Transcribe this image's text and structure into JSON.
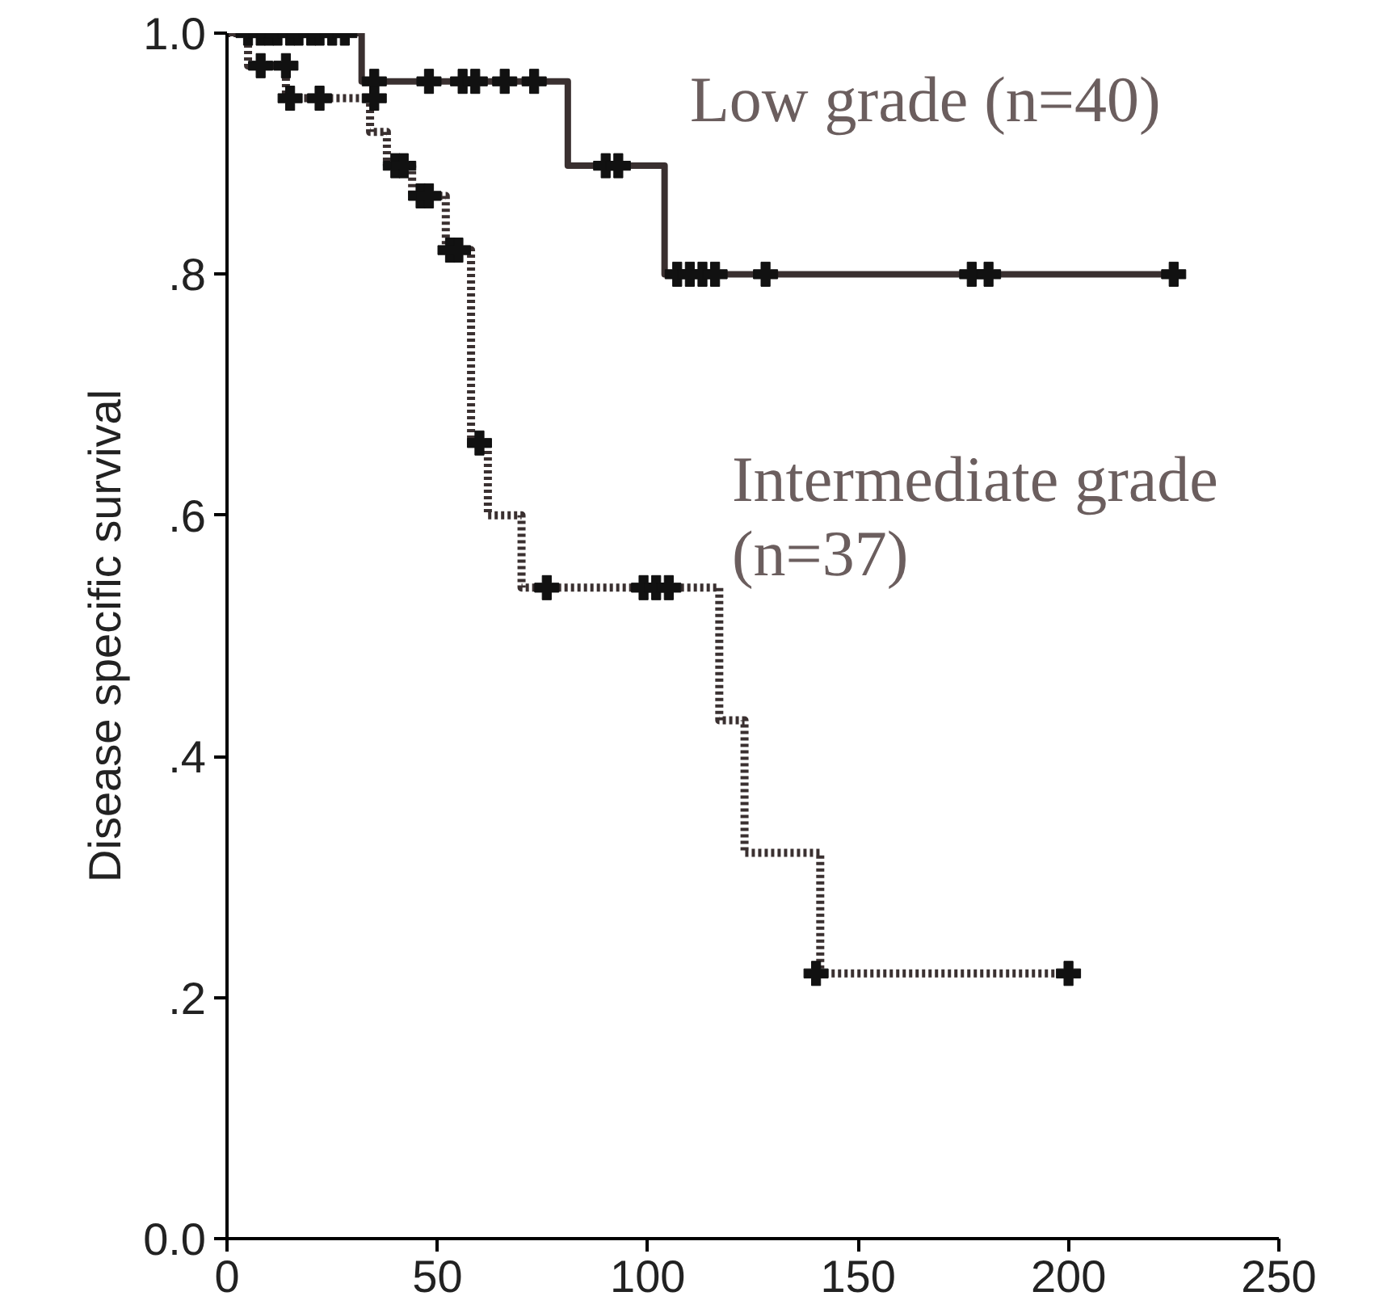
{
  "chart_data": {
    "type": "step",
    "ylabel": "Disease specific survival",
    "xlim": [
      0,
      250
    ],
    "xticks": [
      0,
      50,
      100,
      150,
      200,
      250
    ],
    "ylim": [
      0,
      1
    ],
    "yticks": [
      {
        "value": 0,
        "label": "0.0"
      },
      {
        "value": 0.2,
        "label": ".2"
      },
      {
        "value": 0.4,
        "label": ".4"
      },
      {
        "value": 0.6,
        "label": ".6"
      },
      {
        "value": 0.8,
        "label": ".8"
      },
      {
        "value": 1,
        "label": "1.0"
      }
    ],
    "grid": false,
    "series": [
      {
        "name": "Low grade (n=40)",
        "line_style": "solid",
        "marker": "none",
        "color": "#3a3030",
        "x": [
          0,
          32,
          81,
          104,
          227
        ],
        "values": [
          1.0,
          0.96,
          0.89,
          0.8,
          0.8
        ]
      },
      {
        "name": "Intermediate grade (n=37)",
        "line_style": "dotted",
        "marker": "none",
        "color": "#3a3030",
        "x": [
          0,
          5,
          14,
          34,
          38,
          44,
          52,
          58,
          62,
          70,
          117,
          123,
          141,
          203
        ],
        "values": [
          1.0,
          0.973,
          0.946,
          0.918,
          0.89,
          0.865,
          0.82,
          0.66,
          0.6,
          0.54,
          0.43,
          0.32,
          0.22,
          0.22
        ]
      },
      {
        "type": "scatter",
        "marker": "cross",
        "color": "#111111",
        "x": [
          5,
          8,
          10,
          12,
          15,
          17,
          20,
          22,
          25,
          28,
          35,
          48,
          56,
          59,
          66,
          73,
          90,
          93,
          107,
          110,
          113,
          116,
          128,
          177,
          181,
          225
        ],
        "values": [
          1,
          1,
          1,
          1,
          1,
          1,
          1,
          1,
          1,
          1,
          0.96,
          0.96,
          0.96,
          0.96,
          0.96,
          0.96,
          0.89,
          0.89,
          0.8,
          0.8,
          0.8,
          0.8,
          0.8,
          0.8,
          0.8,
          0.8
        ]
      },
      {
        "type": "scatter",
        "marker": "cross",
        "color": "#111111",
        "x": [
          8,
          14,
          15,
          22,
          35,
          40,
          42,
          46,
          48,
          53,
          55,
          60,
          76,
          99,
          102,
          105,
          140,
          200
        ],
        "values": [
          0.973,
          0.973,
          0.946,
          0.946,
          0.946,
          0.89,
          0.89,
          0.865,
          0.865,
          0.82,
          0.82,
          0.66,
          0.54,
          0.54,
          0.54,
          0.54,
          0.22,
          0.22
        ]
      }
    ]
  }
}
